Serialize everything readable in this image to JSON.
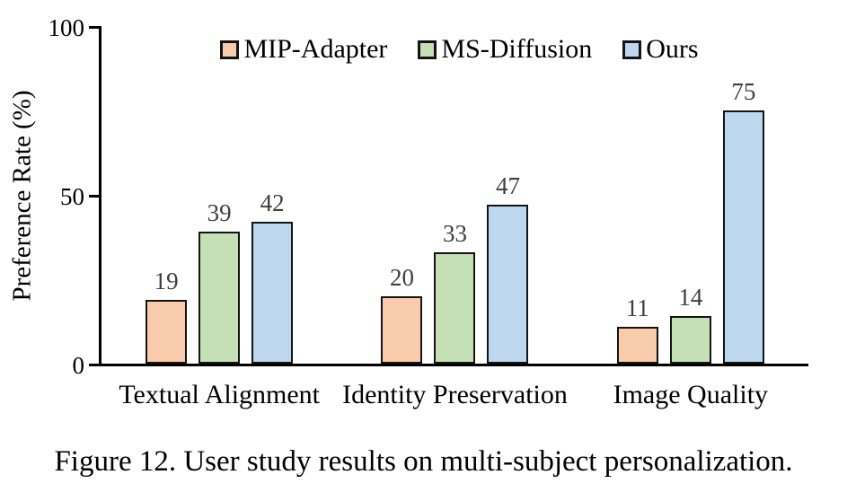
{
  "caption": "Figure 12. User study results on multi-subject personalization.",
  "chart_data": {
    "type": "bar",
    "title": "",
    "xlabel": "",
    "ylabel": "Preference Rate (%)",
    "ylim": [
      0,
      100
    ],
    "yticks": [
      0,
      50,
      100
    ],
    "grid": false,
    "legend_position": "top-center",
    "categories": [
      "Textual Alignment",
      "Identity Preservation",
      "Image Quality"
    ],
    "series": [
      {
        "name": "MIP-Adapter",
        "color": "#F8CBAD",
        "values": [
          19,
          20,
          11
        ]
      },
      {
        "name": "MS-Diffusion",
        "color": "#C5E0B4",
        "values": [
          39,
          33,
          14
        ]
      },
      {
        "name": "Ours",
        "color": "#BDD7EE",
        "values": [
          42,
          47,
          75
        ]
      }
    ],
    "bar_border_color": "#141414",
    "value_label_color": "#3f3f3f",
    "axis_color": "#000000"
  }
}
